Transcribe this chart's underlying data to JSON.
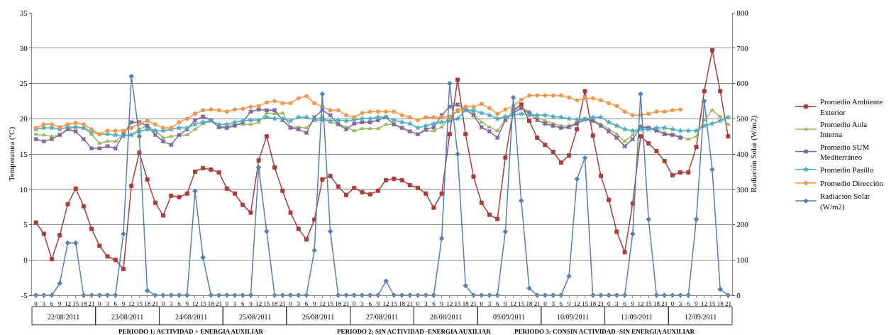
{
  "chart_data": {
    "type": "line",
    "ylabel": "Temperatura (ºC)",
    "y2label": "Radiación Solar (W/m2)",
    "categories": [
      "0",
      "3",
      "6",
      "9",
      "12",
      "15",
      "18",
      "21",
      "0",
      "3",
      "6",
      "9",
      "12",
      "15",
      "18",
      "21",
      "0",
      "3",
      "6",
      "9",
      "12",
      "15",
      "18",
      "21",
      "0",
      "3",
      "6",
      "9",
      "12",
      "15",
      "18",
      "21",
      "0",
      "3",
      "6",
      "9",
      "12",
      "15",
      "18",
      "21",
      "0",
      "3",
      "6",
      "9",
      "12",
      "15",
      "18",
      "21",
      "0",
      "3",
      "6",
      "9",
      "12",
      "15",
      "18",
      "21",
      "0",
      "3",
      "6",
      "9",
      "12",
      "15",
      "18",
      "21",
      "0",
      "3",
      "6",
      "9",
      "12",
      "15",
      "18",
      "21",
      "0",
      "3",
      "6",
      "9",
      "12",
      "15",
      "18",
      "21",
      "0",
      "3",
      "6",
      "9",
      "12",
      "15",
      "18",
      "21"
    ],
    "series": [
      {
        "name": "Promedio Ambiente Exterior",
        "color": "#b03a37",
        "marker": "square",
        "values": [
          5.3,
          3.7,
          0.1,
          3.5,
          7.9,
          10.1,
          7.6,
          4.4,
          2.0,
          0.5,
          0,
          -1.3,
          10.5,
          15.2,
          11.4,
          8.1,
          6.3,
          9.1,
          8.9,
          9.4,
          12.5,
          13.0,
          12.8,
          12.4,
          10.1,
          9.4,
          7.8,
          6.7,
          14.1,
          17.5,
          13.1,
          9.8,
          6.7,
          4.4,
          2.9,
          5.7,
          11.4,
          11.9,
          10.4,
          9.2,
          10.2,
          9.6,
          9.3,
          9.8,
          11.3,
          11.5,
          11.3,
          10.6,
          10.2,
          9.4,
          7.4,
          9.4,
          17.8,
          25.5,
          17.8,
          11.8,
          8.1,
          6.4,
          5.8,
          14.5,
          21.2,
          22.0,
          19.7,
          17.3,
          16.3,
          15.3,
          13.8,
          14.8,
          18.5,
          23.9,
          17.6,
          11.9,
          8.5,
          4.0,
          1.1,
          8.0,
          17.5,
          16.5,
          15.4,
          14.0,
          12.0,
          12.4,
          12.4,
          16.0,
          23.9,
          29.7,
          23.9,
          17.5
        ]
      },
      {
        "name": "Promedio Aula Interna",
        "color": "#9bbb59",
        "marker": "triangle",
        "values": [
          17.8,
          17.7,
          17.5,
          17.7,
          18.5,
          18.8,
          18.7,
          17.8,
          16.5,
          16.8,
          16.8,
          17.7,
          17.7,
          18.5,
          19.0,
          18.3,
          17.3,
          17.5,
          17.7,
          17.7,
          18.5,
          19.3,
          19.7,
          18.8,
          19.0,
          19.2,
          19.2,
          19.2,
          19.5,
          20.8,
          20.7,
          20.8,
          18.8,
          18.8,
          18.7,
          19.8,
          20.3,
          19.5,
          19.3,
          18.8,
          18.3,
          18.6,
          18.6,
          18.6,
          19.2,
          19.2,
          18.7,
          18.2,
          17.8,
          18.3,
          18.3,
          18.8,
          20.3,
          21.0,
          21.5,
          20.8,
          19.5,
          18.8,
          18.3,
          19.8,
          21.2,
          21.5,
          21.0,
          20.2,
          19.7,
          19.3,
          19.0,
          19.0,
          19.5,
          20.0,
          19.8,
          19.2,
          18.5,
          17.8,
          16.8,
          17.7,
          19.0,
          18.8,
          18.5,
          18.0,
          17.8,
          17.5,
          17.1,
          17.5,
          19.8,
          21.2,
          20.3,
          19.2
        ]
      },
      {
        "name": "Promedio SUM Mediterráneo",
        "color": "#8064a2",
        "marker": "cross",
        "values": [
          17.1,
          16.8,
          17.1,
          17.7,
          18.5,
          18.2,
          17.1,
          15.8,
          15.8,
          16.1,
          15.8,
          17.8,
          19.5,
          19.5,
          19.0,
          17.7,
          16.8,
          16.3,
          17.7,
          18.5,
          19.8,
          20.3,
          19.8,
          18.8,
          18.7,
          19.0,
          19.5,
          21.0,
          21.3,
          21.2,
          21.2,
          19.8,
          18.7,
          18.5,
          18.0,
          20.2,
          21.2,
          20.5,
          19.2,
          18.5,
          19.3,
          19.5,
          19.5,
          19.8,
          20.2,
          19.2,
          18.7,
          18.2,
          17.8,
          18.5,
          18.8,
          20.5,
          21.7,
          22.0,
          21.3,
          20.5,
          18.8,
          18.2,
          17.3,
          19.8,
          20.8,
          21.5,
          20.8,
          19.8,
          19.3,
          19.0,
          18.7,
          18.8,
          19.3,
          19.9,
          19.7,
          19.0,
          18.2,
          17.3,
          16.1,
          17.1,
          18.8,
          18.7,
          18.3,
          17.8,
          17.7,
          17.3,
          null,
          null,
          null,
          null,
          null,
          null
        ]
      },
      {
        "name": "Promedio Pasillo",
        "color": "#4bacc6",
        "marker": "star",
        "values": [
          18.5,
          18.7,
          18.7,
          18.5,
          18.8,
          18.8,
          18.7,
          18.2,
          17.8,
          17.8,
          17.7,
          17.5,
          17.7,
          18.2,
          18.5,
          18.3,
          18.3,
          18.5,
          18.7,
          18.7,
          19.2,
          19.5,
          19.7,
          19.2,
          19.2,
          19.5,
          19.7,
          19.8,
          19.8,
          20.2,
          20.0,
          20.0,
          19.7,
          20.2,
          20.2,
          19.8,
          19.8,
          19.7,
          19.8,
          19.7,
          19.8,
          20.0,
          20.0,
          20.2,
          20.2,
          19.8,
          19.5,
          19.3,
          18.7,
          19.0,
          19.3,
          19.5,
          19.7,
          20.0,
          21.2,
          21.2,
          20.8,
          20.5,
          20.0,
          20.3,
          20.5,
          20.7,
          20.5,
          20.5,
          20.5,
          20.3,
          20.2,
          20.0,
          19.9,
          19.9,
          20.2,
          20.2,
          19.5,
          19.0,
          18.5,
          18.3,
          18.5,
          18.5,
          18.7,
          18.7,
          18.5,
          18.3,
          18.3,
          18.3,
          19.0,
          19.3,
          19.7,
          20.2
        ]
      },
      {
        "name": "Promedio Dirección",
        "color": "#f79646",
        "marker": "circle",
        "values": [
          18.7,
          19.2,
          19.2,
          18.8,
          19.2,
          19.4,
          19.2,
          18.5,
          17.8,
          18.3,
          18.3,
          18.3,
          18.7,
          19.3,
          19.7,
          19.2,
          18.7,
          18.7,
          19.5,
          20.0,
          20.7,
          21.2,
          21.3,
          21.2,
          21.0,
          21.3,
          21.4,
          21.7,
          21.8,
          22.3,
          22.5,
          22.2,
          22.2,
          22.9,
          23.2,
          22.2,
          21.7,
          21.2,
          21.2,
          20.5,
          20.2,
          20.8,
          21.0,
          21.0,
          21.0,
          21.0,
          20.5,
          20.2,
          19.8,
          20.2,
          20.2,
          20.2,
          20.3,
          21.2,
          21.7,
          21.7,
          22.1,
          21.5,
          20.7,
          21.3,
          21.8,
          22.7,
          23.3,
          23.3,
          23.3,
          23.3,
          23.3,
          23.0,
          22.6,
          22.9,
          22.9,
          22.6,
          22.2,
          21.8,
          21.0,
          20.5,
          20.5,
          20.7,
          21.0,
          21.0,
          21.2,
          21.3,
          null,
          null,
          null,
          null,
          null,
          null
        ]
      },
      {
        "name": "Radiacion Solar (W/m2)",
        "color": "#4f81bd",
        "marker": "diamond",
        "axis": "y2",
        "values": [
          0,
          0,
          0,
          34,
          148,
          148,
          0,
          0,
          0,
          0,
          0,
          174,
          620,
          450,
          13,
          0,
          0,
          0,
          0,
          0,
          295,
          107,
          0,
          0,
          0,
          0,
          0,
          0,
          362,
          181,
          0,
          0,
          0,
          0,
          0,
          127,
          570,
          181,
          0,
          0,
          0,
          0,
          0,
          0,
          40,
          0,
          0,
          0,
          0,
          0,
          0,
          161,
          600,
          400,
          27,
          0,
          0,
          0,
          0,
          180,
          560,
          268,
          20,
          0,
          0,
          0,
          0,
          54,
          329,
          389,
          0,
          0,
          0,
          0,
          0,
          174,
          570,
          215,
          0,
          0,
          0,
          0,
          0,
          215,
          550,
          356,
          17,
          0
        ]
      }
    ],
    "ylim": [
      -5,
      35
    ],
    "yticks": [
      -5,
      0,
      5,
      10,
      15,
      20,
      25,
      30,
      35
    ],
    "y2lim": [
      0,
      800
    ],
    "y2ticks": [
      0,
      100,
      200,
      300,
      400,
      500,
      600,
      700,
      800
    ],
    "grid": "y",
    "legend": "right",
    "line_style": "solid",
    "annotations": [
      "22/08/2011",
      "23/08/2011",
      "24/08/2011",
      "25/08/2011",
      "26/08/2011",
      "27/08/2011",
      "28/08/2011",
      "09/09/2011",
      "10/09/2011",
      "11/09/2011",
      "12/09/2011",
      "PERIODO 1: ACTIVIDAD + ENERGIA AUXILIAR",
      "PERIODO 2: SIN ACTIVIDAD -ENERGIA AUXILIAR",
      "PERIODO 3: CONSIN ACTIVIDAD -SIN ENERGIA AUXILIAR"
    ]
  }
}
